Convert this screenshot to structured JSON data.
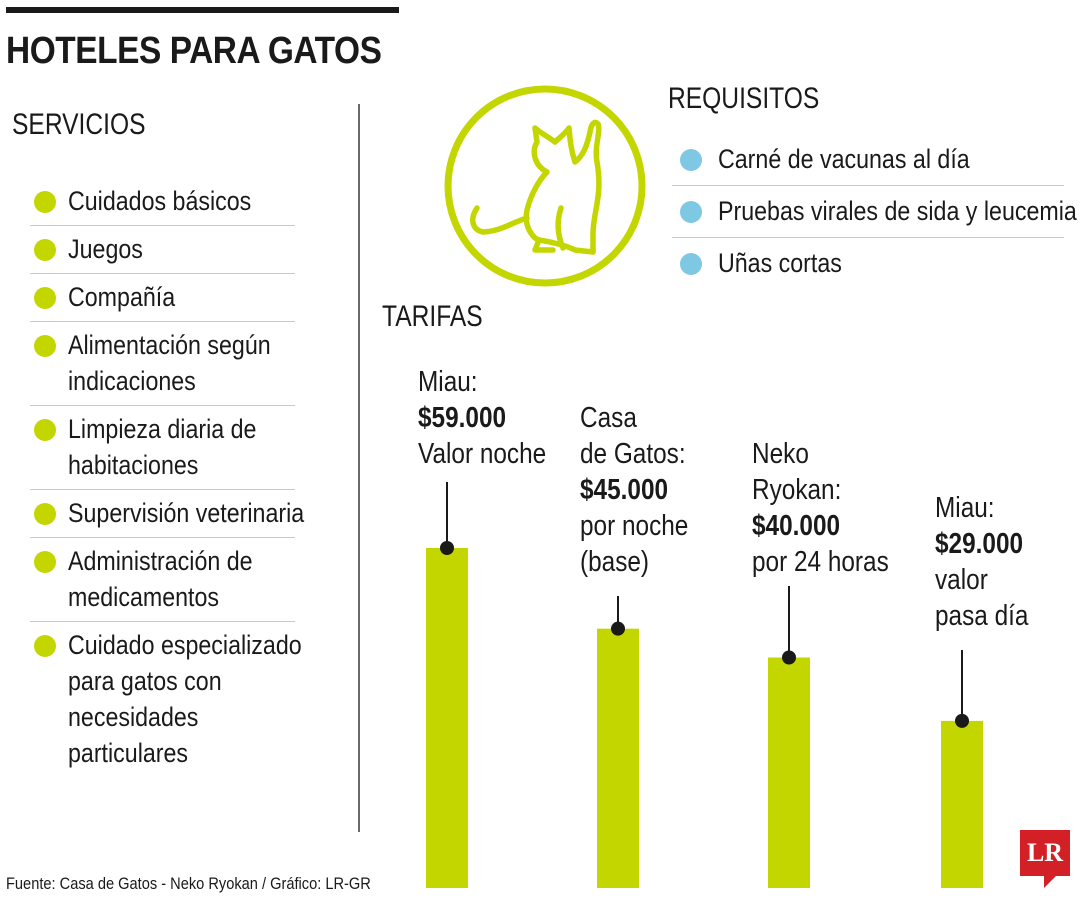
{
  "title": "HOTELES PARA GATOS",
  "services": {
    "heading": "SERVICIOS",
    "items": [
      "Cuidados básicos",
      "Juegos",
      "Compañía",
      "Alimentación según\nindicaciones",
      "Limpieza diaria de\nhabitaciones",
      "Supervisión veterinaria",
      "Administración de\nmedicamentos",
      "Cuidado especializado\npara gatos con\nnecesidades\nparticulares"
    ]
  },
  "requirements": {
    "heading": "REQUISITOS",
    "items": [
      "Carné de vacunas al día",
      "Pruebas virales de sida y leucemia",
      "Uñas cortas"
    ]
  },
  "icon": "cat-in-circle-icon",
  "colors": {
    "bar": "#c4d600",
    "service_bullet": "#c4d600",
    "requirement_bullet": "#7ec8e3",
    "logo": "#d22026"
  },
  "chart_data": {
    "type": "bar",
    "title": "TARIFAS",
    "categories": [
      "Miau",
      "Casa de Gatos",
      "Neko Ryokan",
      "Miau"
    ],
    "values": [
      59000,
      45000,
      40000,
      29000
    ],
    "labels": [
      {
        "pre": [
          "Miau:"
        ],
        "value": "$59.000",
        "post": [
          "Valor noche"
        ]
      },
      {
        "pre": [
          "Casa",
          "de Gatos:"
        ],
        "value": "$45.000",
        "post": [
          "por noche",
          "(base)"
        ]
      },
      {
        "pre": [
          "Neko",
          "Ryokan:"
        ],
        "value": "$40.000",
        "post": [
          "por 24 horas"
        ]
      },
      {
        "pre": [
          "Miau:"
        ],
        "value": "$29.000",
        "post": [
          "valor",
          "pasa día"
        ]
      }
    ]
  },
  "source": "Fuente: Casa de Gatos - Neko Ryokan / Gráfico: LR-GR",
  "logo_text": "LR"
}
